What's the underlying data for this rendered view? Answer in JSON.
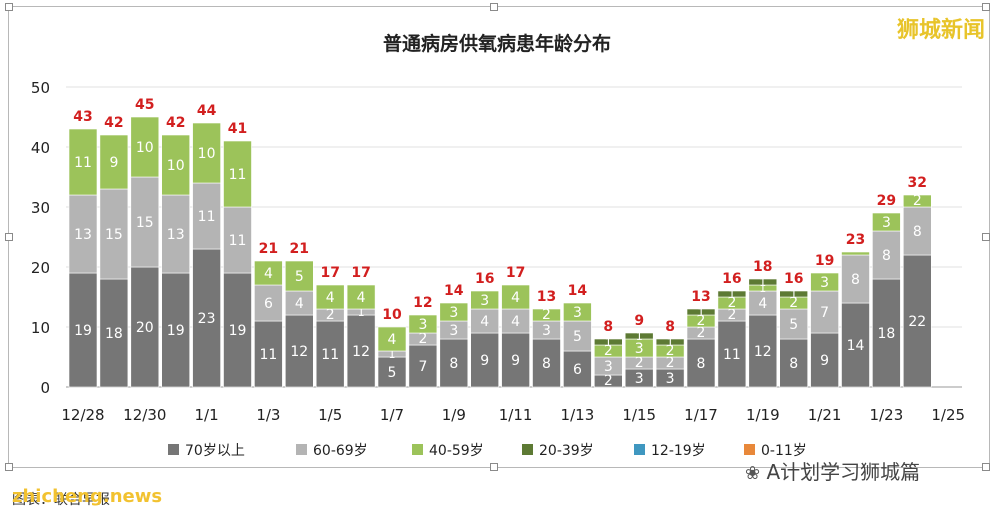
{
  "watermark_brand": "狮城新闻",
  "watermark_url": "zhicheng.news",
  "caption_text": "图表：联合早报",
  "author_tag": "A计划学习狮城篇",
  "chart_data": {
    "type": "bar",
    "stacked": true,
    "title": "普通病房供氧病患年龄分布",
    "xlabel": "",
    "ylabel": "",
    "ylim": [
      0,
      50
    ],
    "yticks": [
      0,
      10,
      20,
      30,
      40,
      50
    ],
    "grid": true,
    "legend_position": "bottom",
    "categories": [
      "12/28",
      "12/29",
      "12/30",
      "12/31",
      "1/1",
      "1/2",
      "1/3",
      "1/4",
      "1/5",
      "1/6",
      "1/7",
      "1/8",
      "1/9",
      "1/10",
      "1/11",
      "1/12",
      "1/13",
      "1/14",
      "1/15",
      "1/16",
      "1/17",
      "1/18",
      "1/19",
      "1/20",
      "1/21",
      "1/22",
      "1/23",
      "1/24",
      "1/25"
    ],
    "tick_labels": [
      "12/28",
      "12/30",
      "1/1",
      "1/3",
      "1/5",
      "1/7",
      "1/9",
      "1/11",
      "1/13",
      "1/15",
      "1/17",
      "1/19",
      "1/21",
      "1/23",
      "1/25"
    ],
    "totals": [
      43,
      42,
      45,
      42,
      44,
      41,
      21,
      21,
      17,
      17,
      10,
      12,
      14,
      16,
      17,
      13,
      14,
      8,
      9,
      8,
      13,
      16,
      18,
      16,
      19,
      23,
      29,
      32,
      null
    ],
    "series": [
      {
        "name": "70岁以上",
        "color": "#767676",
        "values": [
          19,
          18,
          20,
          19,
          23,
          19,
          11,
          12,
          11,
          12,
          5,
          7,
          8,
          9,
          9,
          8,
          6,
          2,
          3,
          3,
          8,
          11,
          12,
          8,
          9,
          14,
          18,
          22,
          null
        ]
      },
      {
        "name": "60-69岁",
        "color": "#b4b4b4",
        "values": [
          13,
          15,
          15,
          13,
          11,
          11,
          6,
          4,
          2,
          1,
          1,
          2,
          3,
          4,
          4,
          3,
          5,
          3,
          2,
          2,
          2,
          2,
          4,
          5,
          7,
          8,
          8,
          8,
          null
        ]
      },
      {
        "name": "40-59岁",
        "color": "#9cc35a",
        "values": [
          11,
          9,
          10,
          10,
          10,
          11,
          4,
          5,
          4,
          4,
          4,
          3,
          3,
          3,
          4,
          2,
          3,
          2,
          3,
          2,
          2,
          2,
          1,
          2,
          3,
          0.5,
          3,
          2,
          null
        ]
      },
      {
        "name": "20-39岁",
        "color": "#5d7a34",
        "values": [
          0,
          0,
          0,
          0,
          0,
          0,
          0,
          0,
          0,
          0,
          0,
          0,
          0,
          0,
          0,
          0,
          0,
          1,
          1,
          1,
          1,
          1,
          1,
          1,
          0,
          0,
          0,
          0,
          null
        ]
      },
      {
        "name": "12-19岁",
        "color": "#3f97c0",
        "values": [
          0,
          0,
          0,
          0,
          0,
          0,
          0,
          0,
          0,
          0,
          0,
          0,
          0,
          0,
          0,
          0,
          0,
          0,
          0,
          0,
          0,
          0,
          0,
          0,
          0,
          0,
          0,
          0,
          null
        ]
      },
      {
        "name": "0-11岁",
        "color": "#e8883a",
        "values": [
          0,
          0,
          0,
          0,
          0,
          0,
          0,
          0,
          0,
          0,
          0,
          0,
          0,
          0,
          0,
          0,
          0,
          0,
          0,
          0,
          0,
          0,
          0,
          0,
          0,
          0,
          0,
          0,
          null
        ]
      }
    ],
    "label_overrides": {
      "25_2": ""
    },
    "total_label_color": "#d21f1f"
  }
}
